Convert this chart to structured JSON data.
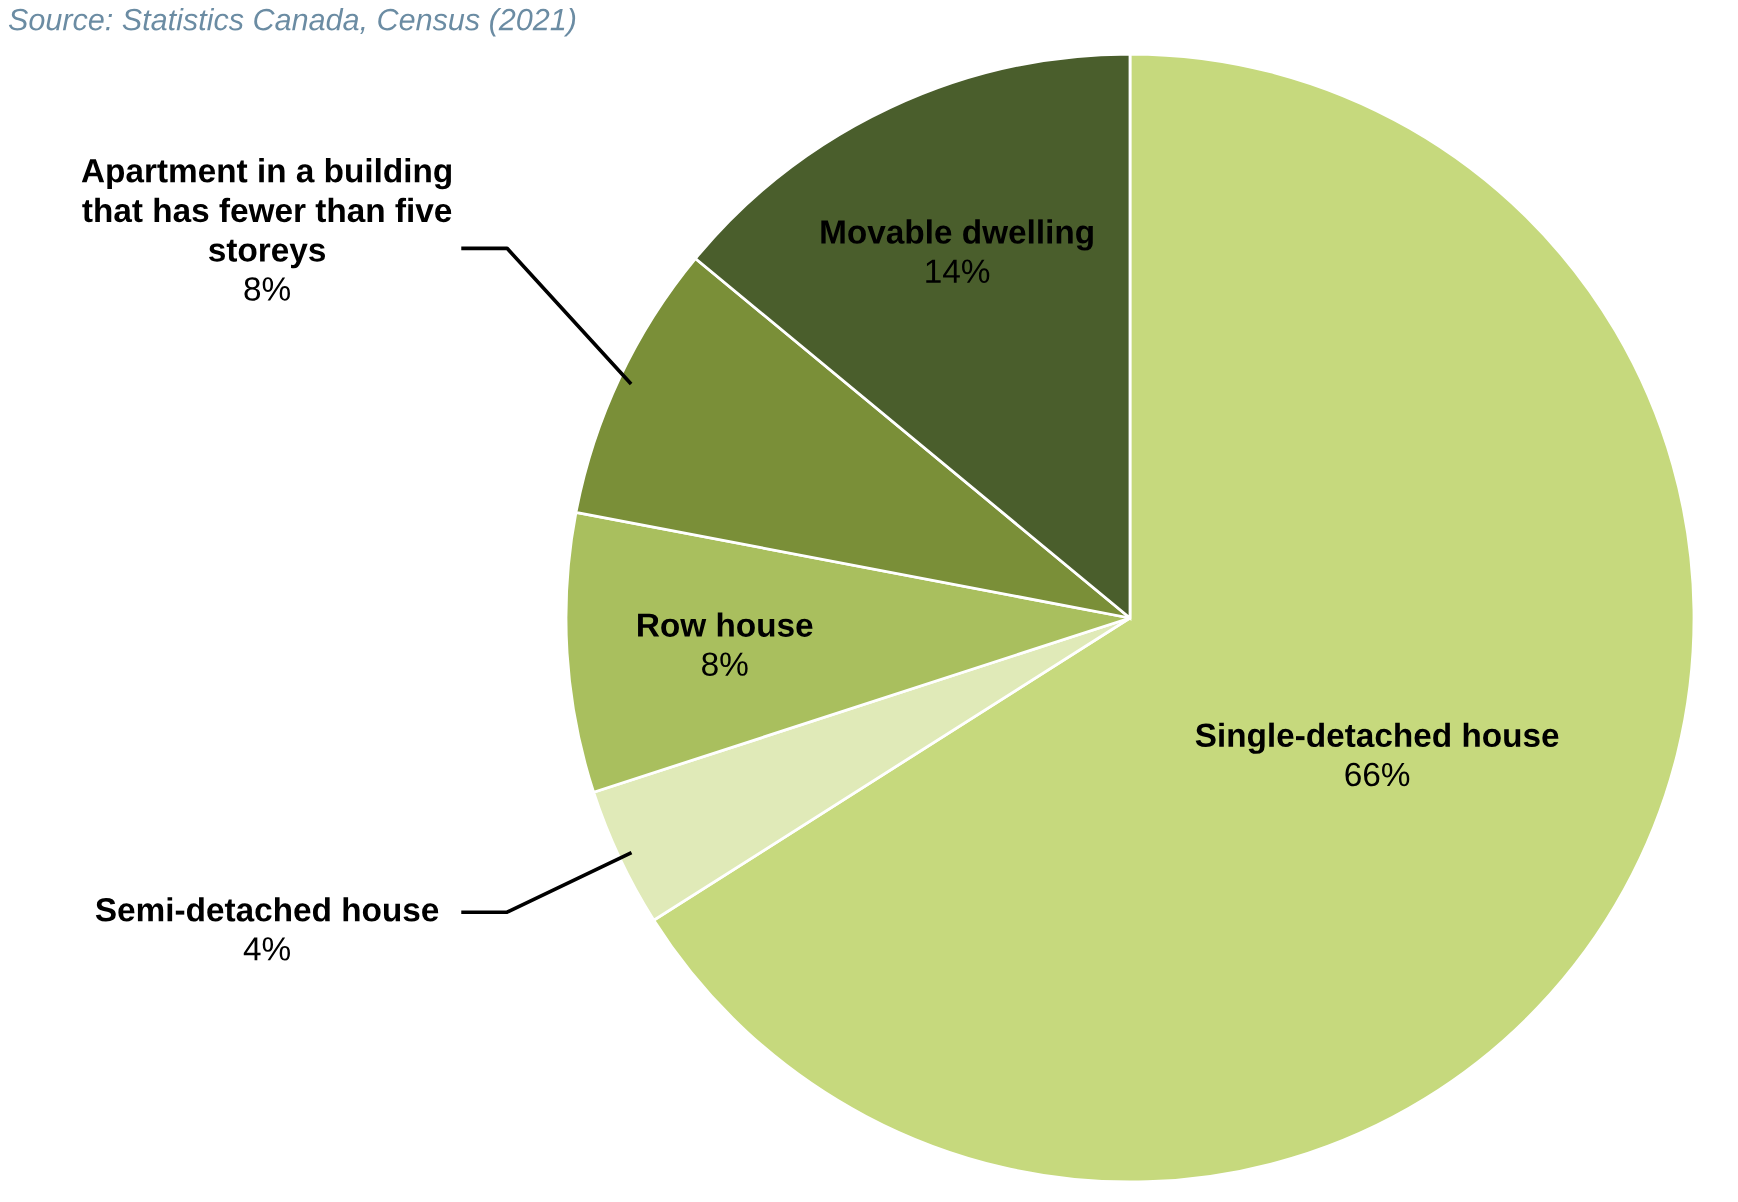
{
  "chart_data": {
    "type": "pie",
    "categories": [
      "Single-detached house",
      "Semi-detached house",
      "Row house",
      "Apartment in a building\nthat has fewer than five\nstoreys",
      "Movable dwelling"
    ],
    "values": [
      66,
      4,
      8,
      8,
      14
    ],
    "value_labels": [
      "66%",
      "4%",
      "8%",
      "8%",
      "14%"
    ],
    "colors": [
      "#c6d97d",
      "#e0eab8",
      "#a9bf5e",
      "#7a8f38",
      "#4a5e2c"
    ],
    "annotations": [
      "Source: Statistics Canada, Census (2021)"
    ],
    "legend": false
  }
}
